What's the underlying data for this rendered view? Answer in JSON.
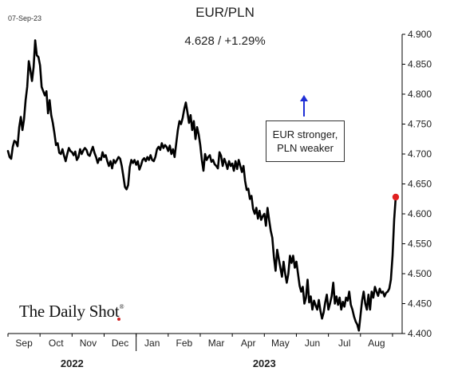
{
  "header": {
    "date": "07-Sep-23",
    "title": "EUR/PLN",
    "subtitle": "4.628  /  +1.29%"
  },
  "annotation": {
    "line1": "EUR stronger,",
    "line2": "PLN weaker",
    "arrow_color": "#1f2fd6"
  },
  "brand": {
    "name": "The Daily Shot",
    "mark": "®"
  },
  "colors": {
    "line": "#000000",
    "endpoint": "#e02020",
    "axis": "#000000"
  },
  "chart_data": {
    "type": "line",
    "title": "EUR/PLN",
    "subtitle": "4.628  /  +1.29%",
    "xlabel": "",
    "ylabel": "",
    "ylim": [
      4.4,
      4.9
    ],
    "y_axis_side": "right",
    "yticks": [
      "4.400",
      "4.450",
      "4.500",
      "4.550",
      "4.600",
      "4.650",
      "4.700",
      "4.750",
      "4.800",
      "4.850",
      "4.900"
    ],
    "x_month_labels": [
      {
        "label": "Sep",
        "x": 0.5
      },
      {
        "label": "Oct",
        "x": 1.5
      },
      {
        "label": "Nov",
        "x": 2.5
      },
      {
        "label": "Dec",
        "x": 3.5
      },
      {
        "label": "Jan",
        "x": 4.5
      },
      {
        "label": "Feb",
        "x": 5.5
      },
      {
        "label": "Mar",
        "x": 6.5
      },
      {
        "label": "Apr",
        "x": 7.5
      },
      {
        "label": "May",
        "x": 8.5
      },
      {
        "label": "Jun",
        "x": 9.5
      },
      {
        "label": "Jul",
        "x": 10.5
      },
      {
        "label": "Aug",
        "x": 11.5
      }
    ],
    "x_year_labels": [
      {
        "label": "2022",
        "x": 2.0
      },
      {
        "label": "2023",
        "x": 8.0
      }
    ],
    "x_range": [
      0,
      12.3
    ],
    "year_divider_x": 4.0,
    "grid": false,
    "series": [
      {
        "points": [
          [
            0.0,
            4.705
          ],
          [
            0.05,
            4.695
          ],
          [
            0.1,
            4.692
          ],
          [
            0.15,
            4.712
          ],
          [
            0.2,
            4.722
          ],
          [
            0.25,
            4.72
          ],
          [
            0.3,
            4.713
          ],
          [
            0.35,
            4.745
          ],
          [
            0.4,
            4.762
          ],
          [
            0.45,
            4.74
          ],
          [
            0.5,
            4.758
          ],
          [
            0.55,
            4.79
          ],
          [
            0.6,
            4.812
          ],
          [
            0.65,
            4.855
          ],
          [
            0.7,
            4.84
          ],
          [
            0.75,
            4.822
          ],
          [
            0.8,
            4.845
          ],
          [
            0.85,
            4.89
          ],
          [
            0.9,
            4.865
          ],
          [
            0.95,
            4.862
          ],
          [
            1.0,
            4.848
          ],
          [
            1.05,
            4.812
          ],
          [
            1.1,
            4.805
          ],
          [
            1.15,
            4.798
          ],
          [
            1.2,
            4.805
          ],
          [
            1.25,
            4.768
          ],
          [
            1.3,
            4.79
          ],
          [
            1.35,
            4.765
          ],
          [
            1.4,
            4.752
          ],
          [
            1.45,
            4.735
          ],
          [
            1.5,
            4.715
          ],
          [
            1.55,
            4.718
          ],
          [
            1.6,
            4.702
          ],
          [
            1.65,
            4.7
          ],
          [
            1.7,
            4.708
          ],
          [
            1.75,
            4.697
          ],
          [
            1.8,
            4.688
          ],
          [
            1.85,
            4.7
          ],
          [
            1.9,
            4.71
          ],
          [
            1.95,
            4.705
          ],
          [
            2.0,
            4.703
          ],
          [
            2.05,
            4.698
          ],
          [
            2.1,
            4.704
          ],
          [
            2.15,
            4.69
          ],
          [
            2.2,
            4.695
          ],
          [
            2.25,
            4.708
          ],
          [
            2.3,
            4.7
          ],
          [
            2.35,
            4.706
          ],
          [
            2.4,
            4.71
          ],
          [
            2.45,
            4.707
          ],
          [
            2.5,
            4.699
          ],
          [
            2.55,
            4.697
          ],
          [
            2.6,
            4.705
          ],
          [
            2.65,
            4.712
          ],
          [
            2.7,
            4.702
          ],
          [
            2.75,
            4.695
          ],
          [
            2.8,
            4.685
          ],
          [
            2.85,
            4.693
          ],
          [
            2.9,
            4.69
          ],
          [
            2.95,
            4.703
          ],
          [
            3.0,
            4.695
          ],
          [
            3.05,
            4.698
          ],
          [
            3.1,
            4.688
          ],
          [
            3.15,
            4.68
          ],
          [
            3.2,
            4.688
          ],
          [
            3.25,
            4.676
          ],
          [
            3.3,
            4.69
          ],
          [
            3.35,
            4.685
          ],
          [
            3.4,
            4.69
          ],
          [
            3.45,
            4.695
          ],
          [
            3.5,
            4.692
          ],
          [
            3.55,
            4.68
          ],
          [
            3.6,
            4.663
          ],
          [
            3.65,
            4.645
          ],
          [
            3.7,
            4.641
          ],
          [
            3.75,
            4.648
          ],
          [
            3.8,
            4.678
          ],
          [
            3.85,
            4.69
          ],
          [
            3.9,
            4.685
          ],
          [
            3.95,
            4.69
          ],
          [
            4.0,
            4.682
          ],
          [
            4.05,
            4.688
          ],
          [
            4.1,
            4.674
          ],
          [
            4.15,
            4.681
          ],
          [
            4.2,
            4.69
          ],
          [
            4.25,
            4.693
          ],
          [
            4.3,
            4.688
          ],
          [
            4.35,
            4.695
          ],
          [
            4.4,
            4.69
          ],
          [
            4.45,
            4.698
          ],
          [
            4.5,
            4.69
          ],
          [
            4.55,
            4.688
          ],
          [
            4.6,
            4.695
          ],
          [
            4.65,
            4.708
          ],
          [
            4.7,
            4.712
          ],
          [
            4.75,
            4.707
          ],
          [
            4.8,
            4.718
          ],
          [
            4.85,
            4.71
          ],
          [
            4.9,
            4.715
          ],
          [
            4.95,
            4.712
          ],
          [
            5.0,
            4.705
          ],
          [
            5.05,
            4.714
          ],
          [
            5.1,
            4.7
          ],
          [
            5.15,
            4.708
          ],
          [
            5.2,
            4.695
          ],
          [
            5.25,
            4.718
          ],
          [
            5.3,
            4.74
          ],
          [
            5.35,
            4.755
          ],
          [
            5.4,
            4.75
          ],
          [
            5.45,
            4.76
          ],
          [
            5.5,
            4.775
          ],
          [
            5.55,
            4.786
          ],
          [
            5.6,
            4.77
          ],
          [
            5.65,
            4.752
          ],
          [
            5.7,
            4.765
          ],
          [
            5.75,
            4.74
          ],
          [
            5.8,
            4.755
          ],
          [
            5.85,
            4.725
          ],
          [
            5.9,
            4.745
          ],
          [
            5.95,
            4.733
          ],
          [
            6.0,
            4.715
          ],
          [
            6.05,
            4.69
          ],
          [
            6.1,
            4.672
          ],
          [
            6.15,
            4.7
          ],
          [
            6.2,
            4.69
          ],
          [
            6.25,
            4.695
          ],
          [
            6.3,
            4.698
          ],
          [
            6.35,
            4.687
          ],
          [
            6.4,
            4.69
          ],
          [
            6.45,
            4.683
          ],
          [
            6.5,
            4.68
          ],
          [
            6.55,
            4.676
          ],
          [
            6.6,
            4.703
          ],
          [
            6.65,
            4.697
          ],
          [
            6.7,
            4.68
          ],
          [
            6.75,
            4.692
          ],
          [
            6.8,
            4.685
          ],
          [
            6.85,
            4.675
          ],
          [
            6.9,
            4.688
          ],
          [
            6.95,
            4.68
          ],
          [
            7.0,
            4.684
          ],
          [
            7.05,
            4.672
          ],
          [
            7.1,
            4.688
          ],
          [
            7.15,
            4.675
          ],
          [
            7.2,
            4.69
          ],
          [
            7.25,
            4.68
          ],
          [
            7.3,
            4.67
          ],
          [
            7.35,
            4.68
          ],
          [
            7.4,
            4.655
          ],
          [
            7.45,
            4.64
          ],
          [
            7.5,
            4.642
          ],
          [
            7.55,
            4.625
          ],
          [
            7.6,
            4.63
          ],
          [
            7.65,
            4.608
          ],
          [
            7.7,
            4.6
          ],
          [
            7.75,
            4.61
          ],
          [
            7.8,
            4.592
          ],
          [
            7.85,
            4.605
          ],
          [
            7.9,
            4.59
          ],
          [
            7.95,
            4.596
          ],
          [
            8.0,
            4.6
          ],
          [
            8.05,
            4.58
          ],
          [
            8.1,
            4.61
          ],
          [
            8.15,
            4.59
          ],
          [
            8.2,
            4.572
          ],
          [
            8.25,
            4.56
          ],
          [
            8.3,
            4.528
          ],
          [
            8.35,
            4.505
          ],
          [
            8.4,
            4.54
          ],
          [
            8.45,
            4.525
          ],
          [
            8.5,
            4.51
          ],
          [
            8.55,
            4.495
          ],
          [
            8.6,
            4.52
          ],
          [
            8.65,
            4.5
          ],
          [
            8.7,
            4.485
          ],
          [
            8.75,
            4.5
          ],
          [
            8.8,
            4.53
          ],
          [
            8.85,
            4.518
          ],
          [
            8.9,
            4.53
          ],
          [
            8.95,
            4.51
          ],
          [
            9.0,
            4.52
          ],
          [
            9.05,
            4.5
          ],
          [
            9.1,
            4.48
          ],
          [
            9.15,
            4.47
          ],
          [
            9.2,
            4.478
          ],
          [
            9.25,
            4.45
          ],
          [
            9.3,
            4.46
          ],
          [
            9.35,
            4.49
          ],
          [
            9.4,
            4.452
          ],
          [
            9.45,
            4.462
          ],
          [
            9.5,
            4.44
          ],
          [
            9.55,
            4.455
          ],
          [
            9.6,
            4.447
          ],
          [
            9.65,
            4.44
          ],
          [
            9.7,
            4.456
          ],
          [
            9.75,
            4.438
          ],
          [
            9.8,
            4.425
          ],
          [
            9.85,
            4.435
          ],
          [
            9.9,
            4.452
          ],
          [
            9.95,
            4.465
          ],
          [
            10.0,
            4.44
          ],
          [
            10.05,
            4.45
          ],
          [
            10.1,
            4.462
          ],
          [
            10.15,
            4.485
          ],
          [
            10.2,
            4.45
          ],
          [
            10.25,
            4.462
          ],
          [
            10.3,
            4.448
          ],
          [
            10.35,
            4.46
          ],
          [
            10.4,
            4.44
          ],
          [
            10.45,
            4.453
          ],
          [
            10.5,
            4.445
          ],
          [
            10.55,
            4.46
          ],
          [
            10.6,
            4.455
          ],
          [
            10.65,
            4.47
          ],
          [
            10.7,
            4.448
          ],
          [
            10.75,
            4.44
          ],
          [
            10.8,
            4.428
          ],
          [
            10.85,
            4.42
          ],
          [
            10.9,
            4.415
          ],
          [
            10.95,
            4.405
          ],
          [
            11.0,
            4.43
          ],
          [
            11.05,
            4.455
          ],
          [
            11.1,
            4.47
          ],
          [
            11.15,
            4.45
          ],
          [
            11.2,
            4.44
          ],
          [
            11.25,
            4.465
          ],
          [
            11.3,
            4.44
          ],
          [
            11.35,
            4.47
          ],
          [
            11.4,
            4.46
          ],
          [
            11.45,
            4.478
          ],
          [
            11.5,
            4.47
          ],
          [
            11.55,
            4.463
          ],
          [
            11.6,
            4.475
          ],
          [
            11.65,
            4.468
          ],
          [
            11.7,
            4.47
          ],
          [
            11.75,
            4.462
          ],
          [
            11.8,
            4.468
          ],
          [
            11.85,
            4.47
          ],
          [
            11.9,
            4.475
          ],
          [
            11.95,
            4.49
          ],
          [
            12.0,
            4.53
          ],
          [
            12.05,
            4.59
          ],
          [
            12.1,
            4.628
          ]
        ]
      }
    ],
    "last_value": 4.628
  }
}
